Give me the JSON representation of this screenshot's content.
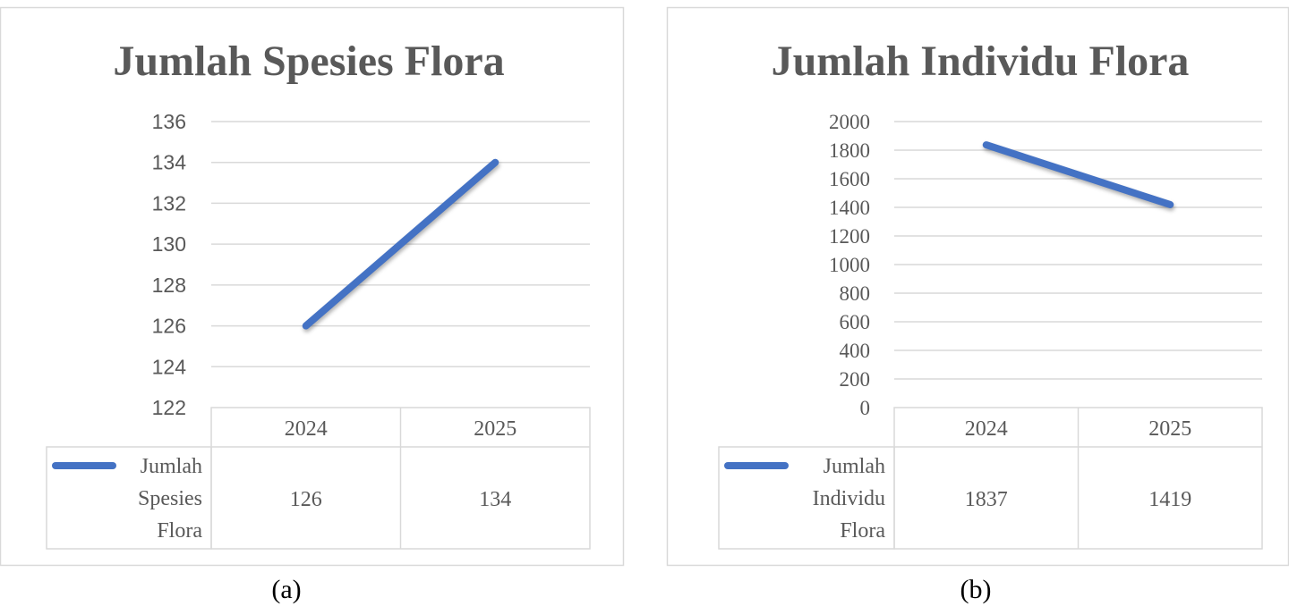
{
  "chart_data": [
    {
      "type": "line",
      "title": "Jumlah Spesies Flora",
      "caption": "(a)",
      "categories": [
        "2024",
        "2025"
      ],
      "series": [
        {
          "name": "Jumlah Spesies Flora",
          "legend_lines": [
            "Jumlah",
            "Spesies",
            "Flora"
          ],
          "values": [
            126,
            134
          ],
          "color": "#4472C4"
        }
      ],
      "yticks": [
        "122",
        "124",
        "126",
        "128",
        "130",
        "132",
        "134",
        "136"
      ],
      "ylim": [
        122,
        136
      ],
      "grid": true,
      "legend": "data-table-bottom"
    },
    {
      "type": "line",
      "title": "Jumlah Individu Flora",
      "caption": "(b)",
      "categories": [
        "2024",
        "2025"
      ],
      "series": [
        {
          "name": "Jumlah Individu Flora",
          "legend_lines": [
            "Jumlah",
            "Individu",
            "Flora"
          ],
          "values": [
            1837,
            1419
          ],
          "color": "#4472C4"
        }
      ],
      "yticks": [
        "0",
        "200",
        "400",
        "600",
        "800",
        "1000",
        "1200",
        "1400",
        "1600",
        "1800",
        "2000"
      ],
      "ylim": [
        0,
        2000
      ],
      "grid": true,
      "legend": "data-table-bottom"
    }
  ]
}
